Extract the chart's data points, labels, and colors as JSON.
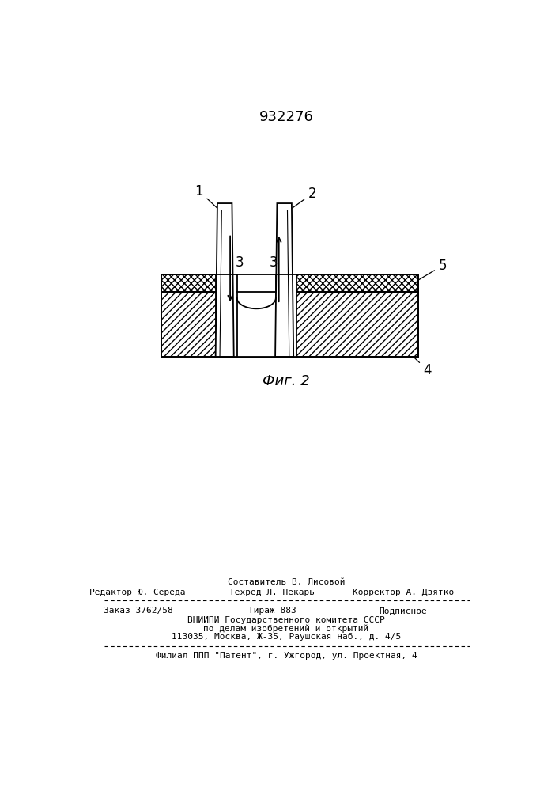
{
  "title": "932276",
  "fig_label": "Фиг. 2",
  "background_color": "#ffffff",
  "line_color": "#000000",
  "footer_line1": "Составитель В. Лисовой",
  "footer_line2_left": "Редактор Ю. Середа",
  "footer_line2_mid": "Техред Л. Пекарь",
  "footer_line2_right": "Корректор А. Дзятко",
  "footer_line3_left": "Заказ 3762/58",
  "footer_line3_mid": "Тираж 883",
  "footer_line3_right": "Подписное",
  "footer_line4": "ВНИИПИ Государственного комитета СССР",
  "footer_line5": "по делам изобретений и открытий",
  "footer_line6": "113035, Москва, Ж-35, Раушская наб., д. 4/5",
  "footer_line7": "Филиал ППП \"Патент\", г. Ужгород, ул. Проектная, 4",
  "label1": "1",
  "label2": "2",
  "label3a": "3",
  "label3b": "3",
  "label4": "4",
  "label5": "5"
}
